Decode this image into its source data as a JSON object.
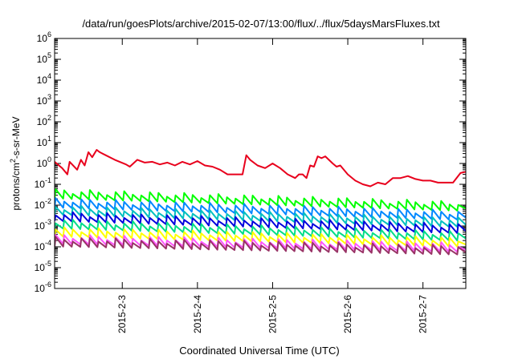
{
  "chart_data": {
    "type": "line",
    "title": "/data/run/goesPlots/archive/2015-02-07/13:00/flux/../flux/5daysMarsFluxes.txt",
    "xlabel": "Coordinated Universal Time (UTC)",
    "ylabel": "protons/cm2-s-sr-MeV",
    "ylabel_parts": {
      "pre": "protons/cm",
      "sup": "2",
      "post": "-s-sr-MeV"
    },
    "yscale": "log",
    "ylim": [
      1e-06,
      1000000.0
    ],
    "xlim": [
      2.1,
      7.57
    ],
    "y_ticks": [
      {
        "value": 1e-06,
        "base": "10",
        "exp": "-6"
      },
      {
        "value": 1e-05,
        "base": "10",
        "exp": "-5"
      },
      {
        "value": 0.0001,
        "base": "10",
        "exp": "-4"
      },
      {
        "value": 0.001,
        "base": "10",
        "exp": "-3"
      },
      {
        "value": 0.01,
        "base": "10",
        "exp": "-2"
      },
      {
        "value": 0.1,
        "base": "10",
        "exp": "-1"
      },
      {
        "value": 1.0,
        "base": "10",
        "exp": "0"
      },
      {
        "value": 10.0,
        "base": "10",
        "exp": "1"
      },
      {
        "value": 100.0,
        "base": "10",
        "exp": "2"
      },
      {
        "value": 1000.0,
        "base": "10",
        "exp": "3"
      },
      {
        "value": 10000.0,
        "base": "10",
        "exp": "4"
      },
      {
        "value": 100000.0,
        "base": "10",
        "exp": "5"
      },
      {
        "value": 1000000.0,
        "base": "10",
        "exp": "6"
      }
    ],
    "x_ticks": [
      {
        "value": 3,
        "label": "2015-2-3"
      },
      {
        "value": 4,
        "label": "2015-2-4"
      },
      {
        "value": 5,
        "label": "2015-2-5"
      },
      {
        "value": 6,
        "label": "2015-2-6"
      },
      {
        "value": 7,
        "label": "2015-2-7"
      }
    ],
    "grid": false,
    "legend": "none",
    "series": [
      {
        "color": "#e8001c",
        "x": [
          2.1,
          2.2,
          2.27,
          2.3,
          2.4,
          2.45,
          2.5,
          2.55,
          2.6,
          2.66,
          2.7,
          2.78,
          2.9,
          3.05,
          3.1,
          3.2,
          3.3,
          3.4,
          3.5,
          3.6,
          3.7,
          3.8,
          3.9,
          4.0,
          4.1,
          4.2,
          4.3,
          4.4,
          4.5,
          4.6,
          4.65,
          4.7,
          4.8,
          4.9,
          5.0,
          5.1,
          5.2,
          5.3,
          5.35,
          5.4,
          5.45,
          5.5,
          5.55,
          5.6,
          5.65,
          5.7,
          5.8,
          5.85,
          5.9,
          6.0,
          6.1,
          6.2,
          6.3,
          6.4,
          6.5,
          6.6,
          6.7,
          6.8,
          6.9,
          7.0,
          7.1,
          7.2,
          7.3,
          7.4,
          7.5,
          7.57
        ],
        "y": [
          1.2,
          0.6,
          0.3,
          1.2,
          0.5,
          1.5,
          0.8,
          3.5,
          2.0,
          4.5,
          3.5,
          2.5,
          1.5,
          0.9,
          0.7,
          1.5,
          1.1,
          1.2,
          0.9,
          1.1,
          0.8,
          1.2,
          0.9,
          1.3,
          0.8,
          0.7,
          0.5,
          0.3,
          0.3,
          0.3,
          2.5,
          1.5,
          0.8,
          0.6,
          1.0,
          0.6,
          0.3,
          0.2,
          0.3,
          0.3,
          0.2,
          0.8,
          0.7,
          2.2,
          1.8,
          2.2,
          1.0,
          0.7,
          0.8,
          0.3,
          0.15,
          0.1,
          0.08,
          0.12,
          0.1,
          0.2,
          0.2,
          0.25,
          0.18,
          0.15,
          0.15,
          0.12,
          0.12,
          0.12,
          0.35,
          0.4
        ]
      },
      {
        "color": "#00ff00",
        "amp": 0.03,
        "slope": -0.6,
        "x_start": 2.1,
        "x_end": 7.57,
        "cycles": 48
      },
      {
        "color": "#0088ff",
        "amp": 0.011,
        "slope": -0.6,
        "x_start": 2.1,
        "x_end": 7.57,
        "cycles": 48
      },
      {
        "color": "#00c0c0",
        "amp": 0.005,
        "slope": -0.6,
        "x_start": 2.1,
        "x_end": 7.57,
        "cycles": 48
      },
      {
        "color": "#0000dd",
        "amp": 0.0025,
        "slope": -0.6,
        "x_start": 2.1,
        "x_end": 7.57,
        "cycles": 48
      },
      {
        "color": "#00dd88",
        "amp": 0.0011,
        "slope": -0.6,
        "x_start": 2.1,
        "x_end": 7.57,
        "cycles": 48
      },
      {
        "color": "#ffff00",
        "amp": 0.00045,
        "slope": -0.5,
        "x_start": 2.1,
        "x_end": 7.57,
        "cycles": 48
      },
      {
        "color": "#ff55ff",
        "amp": 0.0002,
        "slope": -0.4,
        "x_start": 2.1,
        "x_end": 7.57,
        "cycles": 48
      },
      {
        "color": "#993366",
        "amp": 0.00015,
        "slope": -0.4,
        "x_start": 2.1,
        "x_end": 7.57,
        "cycles": 48
      }
    ]
  }
}
